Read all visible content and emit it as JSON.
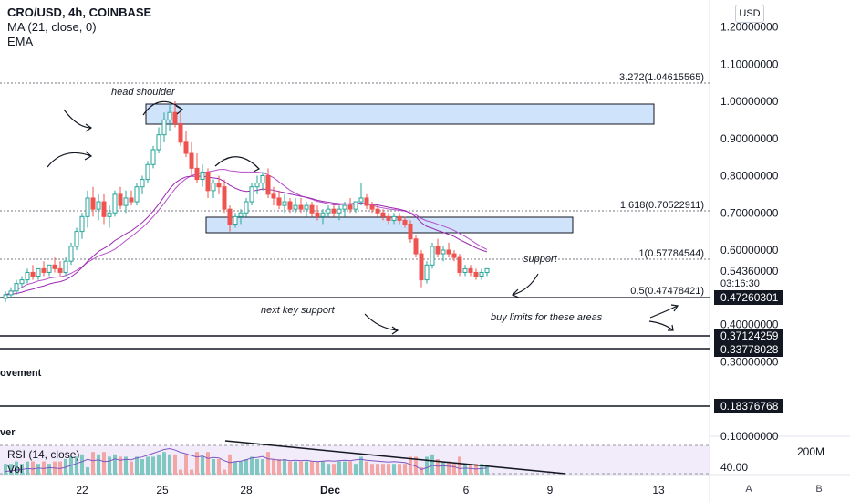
{
  "legend": {
    "symbol": "CRO/USD, 4h, COINBASE",
    "ma": "MA (21, close, 0)",
    "ema": "EMA"
  },
  "currency_badge": "USD",
  "price_scale": {
    "ticks": [
      "1.20000000",
      "1.10000000",
      "1.00000000",
      "0.90000000",
      "0.80000000",
      "0.70000000",
      "0.60000000",
      "0.40000000",
      "0.30000000",
      "0.10000000"
    ],
    "current_price": "0.54360000",
    "countdown": "03:16:30"
  },
  "horizontal_lines": [
    {
      "price_label": "0.47260301"
    },
    {
      "price_label": "0.37124259"
    },
    {
      "price_label": "0.33778028"
    },
    {
      "price_label": "0.18376768"
    }
  ],
  "fib_levels": [
    {
      "label": "3.272(1.04615565)"
    },
    {
      "label": "1.618(0.70522911)"
    },
    {
      "label": "1(0.57784544)"
    },
    {
      "label": "0.5(0.47478421)"
    }
  ],
  "annotations": {
    "head_shoulder": "head shoulder",
    "support": "support",
    "next_key_support": "next key support",
    "buy_limits": "buy limits for these areas",
    "clipped_movement": "ovement",
    "clipped_ver": "ver"
  },
  "rsi_panel": {
    "rsi_label": "RSI (14, close)",
    "vol_label": "Vol",
    "value": "40.00",
    "volume_value": "200M"
  },
  "time_axis": [
    "22",
    "25",
    "28",
    "Dec",
    "6",
    "9",
    "13"
  ],
  "axis_buttons": [
    "A",
    "B"
  ],
  "chart_data": {
    "type": "candlestick",
    "series_name": "CRO/USD",
    "candles": [
      [
        0.47,
        0.49,
        0.46,
        0.48
      ],
      [
        0.48,
        0.5,
        0.47,
        0.49
      ],
      [
        0.49,
        0.52,
        0.48,
        0.51
      ],
      [
        0.51,
        0.53,
        0.5,
        0.52
      ],
      [
        0.52,
        0.55,
        0.51,
        0.54
      ],
      [
        0.54,
        0.56,
        0.52,
        0.53
      ],
      [
        0.53,
        0.55,
        0.52,
        0.55
      ],
      [
        0.55,
        0.57,
        0.53,
        0.54
      ],
      [
        0.54,
        0.56,
        0.53,
        0.56
      ],
      [
        0.56,
        0.58,
        0.54,
        0.55
      ],
      [
        0.55,
        0.57,
        0.53,
        0.54
      ],
      [
        0.54,
        0.58,
        0.53,
        0.57
      ],
      [
        0.57,
        0.62,
        0.56,
        0.61
      ],
      [
        0.61,
        0.66,
        0.6,
        0.65
      ],
      [
        0.65,
        0.7,
        0.63,
        0.69
      ],
      [
        0.69,
        0.76,
        0.66,
        0.74
      ],
      [
        0.74,
        0.77,
        0.69,
        0.71
      ],
      [
        0.71,
        0.75,
        0.68,
        0.73
      ],
      [
        0.73,
        0.75,
        0.67,
        0.69
      ],
      [
        0.69,
        0.72,
        0.66,
        0.7
      ],
      [
        0.7,
        0.76,
        0.69,
        0.75
      ],
      [
        0.75,
        0.77,
        0.71,
        0.72
      ],
      [
        0.72,
        0.76,
        0.7,
        0.74
      ],
      [
        0.74,
        0.76,
        0.72,
        0.73
      ],
      [
        0.73,
        0.78,
        0.72,
        0.77
      ],
      [
        0.77,
        0.8,
        0.75,
        0.79
      ],
      [
        0.79,
        0.84,
        0.78,
        0.83
      ],
      [
        0.83,
        0.88,
        0.82,
        0.87
      ],
      [
        0.87,
        0.93,
        0.86,
        0.91
      ],
      [
        0.91,
        0.97,
        0.89,
        0.95
      ],
      [
        0.95,
        0.99,
        0.92,
        0.97
      ],
      [
        0.97,
        1.0,
        0.93,
        0.94
      ],
      [
        0.94,
        0.97,
        0.88,
        0.89
      ],
      [
        0.89,
        0.92,
        0.85,
        0.86
      ],
      [
        0.86,
        0.89,
        0.8,
        0.82
      ],
      [
        0.82,
        0.86,
        0.78,
        0.79
      ],
      [
        0.79,
        0.83,
        0.77,
        0.81
      ],
      [
        0.81,
        0.82,
        0.74,
        0.76
      ],
      [
        0.76,
        0.79,
        0.74,
        0.78
      ],
      [
        0.78,
        0.8,
        0.75,
        0.77
      ],
      [
        0.77,
        0.79,
        0.7,
        0.71
      ],
      [
        0.71,
        0.72,
        0.65,
        0.67
      ],
      [
        0.67,
        0.7,
        0.66,
        0.69
      ],
      [
        0.69,
        0.71,
        0.67,
        0.7
      ],
      [
        0.7,
        0.74,
        0.69,
        0.73
      ],
      [
        0.73,
        0.78,
        0.72,
        0.77
      ],
      [
        0.77,
        0.8,
        0.75,
        0.78
      ],
      [
        0.78,
        0.81,
        0.76,
        0.8
      ],
      [
        0.8,
        0.82,
        0.74,
        0.75
      ],
      [
        0.75,
        0.77,
        0.72,
        0.74
      ],
      [
        0.74,
        0.76,
        0.71,
        0.72
      ],
      [
        0.72,
        0.75,
        0.7,
        0.73
      ],
      [
        0.73,
        0.74,
        0.7,
        0.71
      ],
      [
        0.71,
        0.74,
        0.7,
        0.72
      ],
      [
        0.72,
        0.74,
        0.7,
        0.71
      ],
      [
        0.71,
        0.73,
        0.69,
        0.72
      ],
      [
        0.72,
        0.73,
        0.69,
        0.7
      ],
      [
        0.7,
        0.72,
        0.68,
        0.69
      ],
      [
        0.69,
        0.71,
        0.67,
        0.7
      ],
      [
        0.7,
        0.72,
        0.69,
        0.71
      ],
      [
        0.71,
        0.72,
        0.69,
        0.7
      ],
      [
        0.7,
        0.72,
        0.68,
        0.71
      ],
      [
        0.71,
        0.73,
        0.69,
        0.72
      ],
      [
        0.72,
        0.74,
        0.7,
        0.71
      ],
      [
        0.71,
        0.73,
        0.7,
        0.73
      ],
      [
        0.73,
        0.78,
        0.72,
        0.74
      ],
      [
        0.74,
        0.75,
        0.71,
        0.72
      ],
      [
        0.72,
        0.73,
        0.7,
        0.71
      ],
      [
        0.71,
        0.72,
        0.69,
        0.7
      ],
      [
        0.7,
        0.71,
        0.68,
        0.69
      ],
      [
        0.69,
        0.7,
        0.67,
        0.68
      ],
      [
        0.68,
        0.7,
        0.67,
        0.69
      ],
      [
        0.69,
        0.7,
        0.67,
        0.68
      ],
      [
        0.68,
        0.69,
        0.66,
        0.67
      ],
      [
        0.67,
        0.68,
        0.62,
        0.63
      ],
      [
        0.63,
        0.64,
        0.58,
        0.59
      ],
      [
        0.59,
        0.6,
        0.5,
        0.52
      ],
      [
        0.52,
        0.57,
        0.51,
        0.56
      ],
      [
        0.56,
        0.62,
        0.55,
        0.61
      ],
      [
        0.61,
        0.63,
        0.58,
        0.59
      ],
      [
        0.59,
        0.61,
        0.57,
        0.6
      ],
      [
        0.6,
        0.62,
        0.58,
        0.59
      ],
      [
        0.59,
        0.6,
        0.57,
        0.58
      ],
      [
        0.58,
        0.59,
        0.53,
        0.54
      ],
      [
        0.54,
        0.56,
        0.53,
        0.55
      ],
      [
        0.55,
        0.56,
        0.53,
        0.54
      ],
      [
        0.54,
        0.55,
        0.52,
        0.53
      ],
      [
        0.53,
        0.55,
        0.52,
        0.54
      ],
      [
        0.54,
        0.55,
        0.53,
        0.55
      ]
    ],
    "ma_color": "#b54fc9",
    "ema_color": "#9c27b0",
    "up_color": "#26a69a",
    "down_color": "#ef5350",
    "y_range": [
      0.1,
      1.25
    ],
    "grid": false
  }
}
